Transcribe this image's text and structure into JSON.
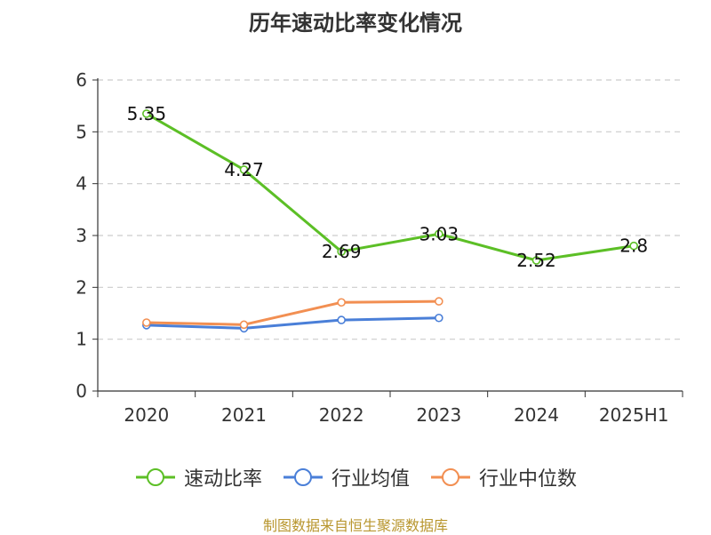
{
  "chart_data": {
    "type": "line",
    "title": "历年速动比率变化情况",
    "categories": [
      "2020",
      "2021",
      "2022",
      "2023",
      "2024",
      "2025H1"
    ],
    "yticks": [
      "0",
      "1",
      "2",
      "3",
      "4",
      "5",
      "6"
    ],
    "ylim": [
      0,
      6
    ],
    "grid": true,
    "legend_position": "bottom",
    "series": [
      {
        "name": "速动比率",
        "color": "#5cbf26",
        "values": [
          5.35,
          4.27,
          2.69,
          3.03,
          2.52,
          2.8
        ],
        "labels": [
          "5.35",
          "4.27",
          "2.69",
          "3.03",
          "2.52",
          "2.8"
        ]
      },
      {
        "name": "行业均值",
        "color": "#4a7fd8",
        "values": [
          1.27,
          1.21,
          1.37,
          1.41,
          null,
          null
        ]
      },
      {
        "name": "行业中位数",
        "color": "#f28f52",
        "values": [
          1.32,
          1.28,
          1.71,
          1.73,
          null,
          null
        ]
      }
    ]
  },
  "source": "制图数据来自恒生聚源数据库"
}
